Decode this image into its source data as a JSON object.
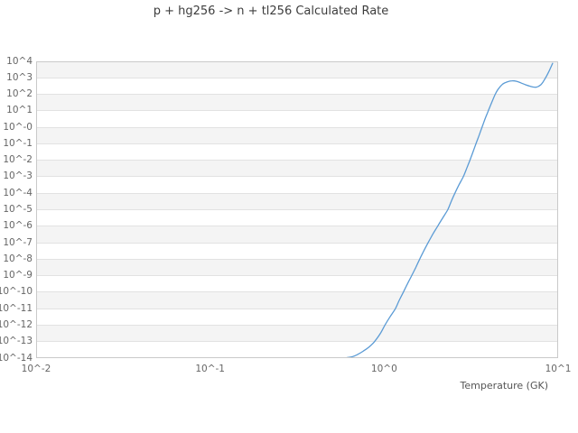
{
  "chart_data": {
    "type": "line",
    "title": "p + hg256 -> n + tl256 Calculated Rate",
    "xlabel": "Temperature (GK)",
    "ylabel": "",
    "x_scale": "log",
    "y_scale": "log",
    "xlim_log10": [
      -2,
      1
    ],
    "ylim_log10": [
      -14,
      4
    ],
    "x_tick_labels": [
      "10^-2",
      "10^-1",
      "10^0",
      "10^1"
    ],
    "y_tick_labels": [
      "10^4",
      "10^3",
      "10^2",
      "10^1",
      "10^-0",
      "10^-1",
      "10^-2",
      "10^-3",
      "10^-4",
      "10^-5",
      "10^-6",
      "10^-7",
      "10^-8",
      "10^-9",
      "10^-10",
      "10^-11",
      "10^-12",
      "10^-13",
      "10^-14"
    ],
    "grid": "horizontal-decade-bands",
    "legend": "none",
    "series": [
      {
        "name": "calculated-rate",
        "points_T_GK_log10rate": [
          [
            0.61,
            -13.97
          ],
          [
            0.655,
            -13.92
          ],
          [
            0.7,
            -13.79
          ],
          [
            0.76,
            -13.57
          ],
          [
            0.82,
            -13.32
          ],
          [
            0.875,
            -13.03
          ],
          [
            0.95,
            -12.52
          ],
          [
            1.01,
            -12.0
          ],
          [
            1.08,
            -11.5
          ],
          [
            1.16,
            -11.0
          ],
          [
            1.22,
            -10.5
          ],
          [
            1.29,
            -10.0
          ],
          [
            1.36,
            -9.5
          ],
          [
            1.44,
            -9.0
          ],
          [
            1.52,
            -8.5
          ],
          [
            1.6,
            -8.0
          ],
          [
            1.69,
            -7.5
          ],
          [
            1.79,
            -7.0
          ],
          [
            1.9,
            -6.5
          ],
          [
            2.03,
            -6.0
          ],
          [
            2.17,
            -5.5
          ],
          [
            2.32,
            -5.0
          ],
          [
            2.43,
            -4.5
          ],
          [
            2.55,
            -4.0
          ],
          [
            2.69,
            -3.5
          ],
          [
            2.85,
            -3.0
          ],
          [
            2.98,
            -2.5
          ],
          [
            3.11,
            -2.0
          ],
          [
            3.24,
            -1.5
          ],
          [
            3.37,
            -1.0
          ],
          [
            3.51,
            -0.5
          ],
          [
            3.65,
            0.0
          ],
          [
            3.8,
            0.5
          ],
          [
            3.97,
            1.0
          ],
          [
            4.15,
            1.5
          ],
          [
            4.35,
            2.0
          ],
          [
            4.55,
            2.35
          ],
          [
            4.8,
            2.62
          ],
          [
            5.1,
            2.76
          ],
          [
            5.45,
            2.82
          ],
          [
            5.8,
            2.78
          ],
          [
            6.1,
            2.7
          ],
          [
            6.5,
            2.58
          ],
          [
            6.9,
            2.49
          ],
          [
            7.2,
            2.44
          ],
          [
            7.45,
            2.43
          ],
          [
            7.7,
            2.48
          ],
          [
            7.95,
            2.58
          ],
          [
            8.2,
            2.76
          ],
          [
            8.5,
            3.03
          ],
          [
            8.8,
            3.33
          ],
          [
            9.05,
            3.6
          ],
          [
            9.3,
            3.88
          ]
        ]
      }
    ],
    "colors": {
      "line": "#5b9bd5",
      "band": "#f4f4f4",
      "band_alt": "#ffffff",
      "gridline": "#e2e2e2",
      "border": "#c9c9c9",
      "title_text": "#3d3d3d",
      "tick_text": "#666666",
      "axis_label_text": "#555555"
    }
  }
}
